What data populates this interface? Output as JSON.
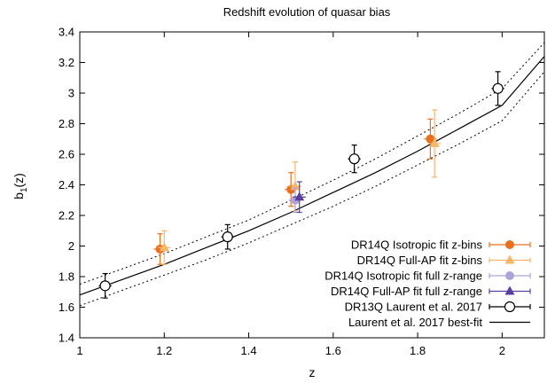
{
  "chart_data": {
    "type": "scatter",
    "title": "Redshift evolution of quasar bias",
    "xlabel": "z",
    "ylabel_main": "b",
    "ylabel_sub": "1",
    "ylabel_tail": "(z)",
    "xlim": [
      1,
      2.1
    ],
    "ylim": [
      1.4,
      3.4
    ],
    "x_ticks": [
      1,
      1.2,
      1.4,
      1.6,
      1.8,
      2
    ],
    "x_tick_labels": [
      "1",
      "1.2",
      "1.4",
      "1.6",
      "1.8",
      "2"
    ],
    "y_ticks": [
      1.4,
      1.6,
      1.8,
      2,
      2.2,
      2.4,
      2.6,
      2.8,
      3,
      3.2,
      3.4
    ],
    "y_tick_labels": [
      "1.4",
      "1.6",
      "1.8",
      "2",
      "2.2",
      "2.4",
      "2.6",
      "2.8",
      "3",
      "3.2",
      "3.4"
    ],
    "grid": false,
    "legend_position": "bottom-right",
    "series": [
      {
        "name": "DR14Q Isotropic fit z-bins",
        "marker": "circle-filled",
        "color": "#e8701f",
        "points": [
          {
            "x": 1.19,
            "y": 1.98,
            "yerr": 0.1,
            "xerr": 0.015
          },
          {
            "x": 1.5,
            "y": 2.37,
            "yerr": 0.11,
            "xerr": 0.015
          },
          {
            "x": 1.83,
            "y": 2.7,
            "yerr": 0.13,
            "xerr": 0.015
          }
        ]
      },
      {
        "name": "DR14Q Full-AP fit z-bins",
        "marker": "triangle-filled",
        "color": "#f9b56a",
        "points": [
          {
            "x": 1.2,
            "y": 1.99,
            "yerr": 0.11,
            "xerr": 0.015
          },
          {
            "x": 1.51,
            "y": 2.39,
            "yerr": 0.16,
            "xerr": 0.015
          },
          {
            "x": 1.84,
            "y": 2.67,
            "yerr": 0.22,
            "xerr": 0.015
          }
        ]
      },
      {
        "name": "DR14Q Isotropic fit full z-range",
        "marker": "circle-filled",
        "color": "#b0a3d6",
        "points": [
          {
            "x": 1.51,
            "y": 2.3,
            "yerr": 0.08,
            "xerr": 0.015
          }
        ]
      },
      {
        "name": "DR14Q Full-AP fit full z-range",
        "marker": "triangle-filled",
        "color": "#5a3fa0",
        "points": [
          {
            "x": 1.52,
            "y": 2.32,
            "yerr": 0.1,
            "xerr": 0.015
          }
        ]
      },
      {
        "name": "DR13Q Laurent et al. 2017",
        "marker": "circle-open",
        "color": "#000000",
        "points": [
          {
            "x": 1.06,
            "y": 1.74,
            "yerr": 0.08,
            "xerr": 0.015
          },
          {
            "x": 1.35,
            "y": 2.06,
            "yerr": 0.08,
            "xerr": 0.015
          },
          {
            "x": 1.65,
            "y": 2.57,
            "yerr": 0.09,
            "xerr": 0.015
          },
          {
            "x": 1.99,
            "y": 3.03,
            "yerr": 0.11,
            "xerr": 0.015
          }
        ]
      }
    ],
    "best_fit": {
      "name": "Laurent et al. 2017 best-fit",
      "color": "#000000",
      "x": [
        1,
        1.1,
        1.2,
        1.3,
        1.4,
        1.5,
        1.6,
        1.7,
        1.8,
        1.9,
        2,
        2.1
      ],
      "y": [
        1.68,
        1.78,
        1.88,
        1.99,
        2.1,
        2.22,
        2.35,
        2.48,
        2.62,
        2.77,
        2.92,
        3.24
      ],
      "band_upper": [
        1.75,
        1.85,
        1.95,
        2.06,
        2.17,
        2.3,
        2.43,
        2.57,
        2.72,
        2.87,
        3.03,
        3.33
      ],
      "band_lower": [
        1.61,
        1.71,
        1.81,
        1.91,
        2.02,
        2.14,
        2.26,
        2.39,
        2.53,
        2.67,
        2.82,
        3.14
      ]
    }
  }
}
